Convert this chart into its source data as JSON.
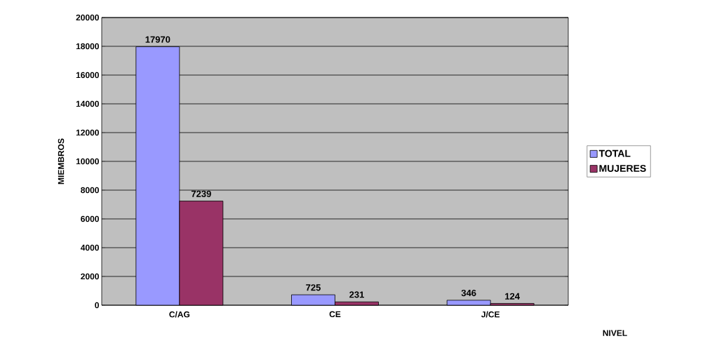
{
  "chart_data": {
    "type": "bar",
    "categories": [
      "C/AG",
      "CE",
      "J/CE"
    ],
    "series": [
      {
        "name": "TOTAL",
        "color": "#9999ff",
        "values": [
          17970,
          725,
          346
        ]
      },
      {
        "name": "MUJERES",
        "color": "#993366",
        "values": [
          7239,
          231,
          124
        ]
      }
    ],
    "xlabel": "NIVEL",
    "ylabel": "MIEMBROS",
    "ylim": [
      0,
      20000
    ],
    "yticks": [
      0,
      2000,
      4000,
      6000,
      8000,
      10000,
      12000,
      14000,
      16000,
      18000,
      20000
    ],
    "grid": "y",
    "legend": "right",
    "data_labels": true
  }
}
